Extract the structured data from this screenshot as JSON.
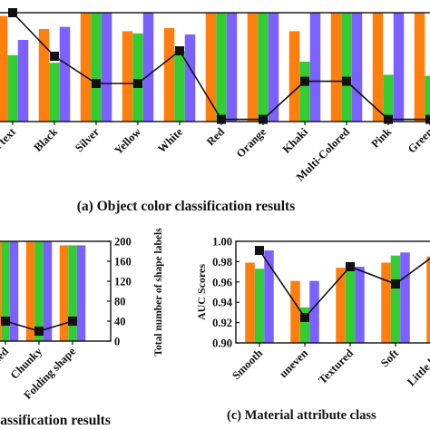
{
  "chart_data": [
    {
      "type": "bar",
      "panel": "a",
      "caption": "(a) Object color classification results",
      "categories": [
        "n text",
        "Black",
        "Silver",
        "Yellow",
        "White",
        "Red",
        "Orange",
        "Khaki",
        "Multi-Colored",
        "Pink",
        "Green"
      ],
      "series": [
        {
          "color": "#ff7f0e",
          "values": [
            0.97,
            0.85,
            1.0,
            0.83,
            0.86,
            1.0,
            1.0,
            0.83,
            1.0,
            1.0,
            1.0
          ]
        },
        {
          "color": "#33cc33",
          "values": [
            0.61,
            0.54,
            1.0,
            0.81,
            0.65,
            1.0,
            1.0,
            0.55,
            1.0,
            0.43,
            0.42
          ]
        },
        {
          "color": "#7b61ff",
          "values": [
            0.75,
            0.87,
            1.0,
            1.0,
            0.8,
            1.0,
            1.0,
            1.0,
            1.0,
            1.0,
            1.0
          ]
        }
      ],
      "line": {
        "color": "#111111",
        "marker": "square",
        "values": [
          1.0,
          0.6,
          0.35,
          0.35,
          0.65,
          0.02,
          0.02,
          0.37,
          0.37,
          0.02,
          0.02
        ]
      },
      "ylim": [
        0,
        1
      ]
    },
    {
      "type": "bar",
      "panel": "b",
      "caption": "lassification results",
      "categories": [
        "ottled",
        "Chunky",
        "Folding shape"
      ],
      "series": [
        {
          "color": "#ff7f0e",
          "values": [
            200,
            200,
            192
          ]
        },
        {
          "color": "#33cc33",
          "values": [
            200,
            200,
            192
          ]
        },
        {
          "color": "#7b61ff",
          "values": [
            200,
            200,
            192
          ]
        }
      ],
      "line": {
        "color": "#111111",
        "marker": "square",
        "values": [
          40,
          20,
          40
        ]
      },
      "y2label": "Total number of shape labels",
      "y2ticks": [
        "0",
        "40",
        "80",
        "120",
        "160",
        "200"
      ],
      "ylim": [
        0,
        200
      ]
    },
    {
      "type": "bar",
      "panel": "c",
      "caption": "(c) Material attribute class",
      "categories": [
        "Smooth",
        "uneven",
        "Textured",
        "Soft",
        "Little har"
      ],
      "series": [
        {
          "color": "#ff7f0e",
          "values": [
            0.979,
            0.961,
            0.974,
            0.979,
            0.985
          ]
        },
        {
          "color": "#33cc33",
          "values": [
            0.973,
            0.935,
            0.977,
            0.986,
            0.979
          ]
        },
        {
          "color": "#7b61ff",
          "values": [
            0.991,
            0.961,
            0.975,
            0.989,
            0.99
          ]
        }
      ],
      "line": {
        "color": "#111111",
        "marker": "square",
        "values": [
          0.991,
          0.925,
          0.975,
          0.958,
          0.991
        ]
      },
      "ylabel": "AUC Scores",
      "yticks": [
        "0.90",
        "0.92",
        "0.94",
        "0.96",
        "0.98",
        "1.00"
      ],
      "ylim": [
        0.9,
        1.0
      ]
    }
  ]
}
